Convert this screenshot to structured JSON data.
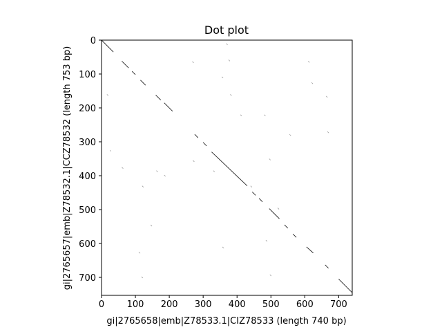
{
  "chart_data": {
    "type": "scatter",
    "title": "Dot plot",
    "xlabel": "gi|2765658|emb|Z78533.1|CIZ78533 (length 740 bp)",
    "ylabel": "gi|2765657|emb|Z78532.1|CCZ78532 (length 753 bp)",
    "xlim": [
      0,
      740
    ],
    "ylim": [
      753,
      0
    ],
    "x_ticks": [
      0,
      100,
      200,
      300,
      400,
      500,
      600,
      700
    ],
    "y_ticks": [
      0,
      100,
      200,
      300,
      400,
      500,
      600,
      700
    ],
    "grid": false,
    "match_segments": [
      {
        "x": [
          0,
          35
        ],
        "y": [
          0,
          35
        ]
      },
      {
        "x": [
          60,
          80
        ],
        "y": [
          62,
          82
        ]
      },
      {
        "x": [
          90,
          100
        ],
        "y": [
          92,
          102
        ]
      },
      {
        "x": [
          115,
          130
        ],
        "y": [
          118,
          133
        ]
      },
      {
        "x": [
          160,
          175
        ],
        "y": [
          162,
          177
        ]
      },
      {
        "x": [
          185,
          210
        ],
        "y": [
          185,
          210
        ]
      },
      {
        "x": [
          275,
          285
        ],
        "y": [
          278,
          288
        ]
      },
      {
        "x": [
          300,
          310
        ],
        "y": [
          302,
          312
        ]
      },
      {
        "x": [
          325,
          430
        ],
        "y": [
          330,
          430
        ]
      },
      {
        "x": [
          445,
          455
        ],
        "y": [
          448,
          458
        ]
      },
      {
        "x": [
          465,
          475
        ],
        "y": [
          467,
          477
        ]
      },
      {
        "x": [
          495,
          525
        ],
        "y": [
          497,
          527
        ]
      },
      {
        "x": [
          540,
          550
        ],
        "y": [
          545,
          555
        ]
      },
      {
        "x": [
          565,
          575
        ],
        "y": [
          572,
          582
        ]
      },
      {
        "x": [
          605,
          625
        ],
        "y": [
          610,
          628
        ]
      },
      {
        "x": [
          660,
          670
        ],
        "y": [
          663,
          673
        ]
      },
      {
        "x": [
          700,
          740
        ],
        "y": [
          705,
          745
        ]
      }
    ],
    "noise_segments": [
      {
        "x": [
          16,
          20
        ],
        "y": [
          160,
          164
        ]
      },
      {
        "x": [
          25,
          28
        ],
        "y": [
          325,
          328
        ]
      },
      {
        "x": [
          60,
          64
        ],
        "y": [
          375,
          379
        ]
      },
      {
        "x": [
          110,
          114
        ],
        "y": [
          625,
          629
        ]
      },
      {
        "x": [
          118,
          122
        ],
        "y": [
          698,
          702
        ]
      },
      {
        "x": [
          120,
          124
        ],
        "y": [
          430,
          434
        ]
      },
      {
        "x": [
          145,
          149
        ],
        "y": [
          545,
          549
        ]
      },
      {
        "x": [
          162,
          166
        ],
        "y": [
          385,
          389
        ]
      },
      {
        "x": [
          185,
          189
        ],
        "y": [
          398,
          402
        ]
      },
      {
        "x": [
          268,
          272
        ],
        "y": [
          63,
          67
        ]
      },
      {
        "x": [
          270,
          274
        ],
        "y": [
          355,
          359
        ]
      },
      {
        "x": [
          330,
          334
        ],
        "y": [
          385,
          389
        ]
      },
      {
        "x": [
          355,
          359
        ],
        "y": [
          108,
          112
        ]
      },
      {
        "x": [
          357,
          361
        ],
        "y": [
          610,
          614
        ]
      },
      {
        "x": [
          368,
          372
        ],
        "y": [
          10,
          14
        ]
      },
      {
        "x": [
          375,
          379
        ],
        "y": [
          58,
          62
        ]
      },
      {
        "x": [
          380,
          384
        ],
        "y": [
          160,
          164
        ]
      },
      {
        "x": [
          410,
          414
        ],
        "y": [
          220,
          224
        ]
      },
      {
        "x": [
          440,
          444
        ],
        "y": [
          430,
          434
        ]
      },
      {
        "x": [
          480,
          484
        ],
        "y": [
          220,
          224
        ]
      },
      {
        "x": [
          485,
          489
        ],
        "y": [
          590,
          594
        ]
      },
      {
        "x": [
          495,
          499
        ],
        "y": [
          350,
          354
        ]
      },
      {
        "x": [
          497,
          501
        ],
        "y": [
          692,
          696
        ]
      },
      {
        "x": [
          520,
          524
        ],
        "y": [
          495,
          499
        ]
      },
      {
        "x": [
          555,
          559
        ],
        "y": [
          278,
          282
        ]
      },
      {
        "x": [
          610,
          614
        ],
        "y": [
          62,
          66
        ]
      },
      {
        "x": [
          620,
          624
        ],
        "y": [
          125,
          129
        ]
      },
      {
        "x": [
          663,
          667
        ],
        "y": [
          165,
          169
        ]
      },
      {
        "x": [
          667,
          671
        ],
        "y": [
          270,
          274
        ]
      }
    ]
  }
}
